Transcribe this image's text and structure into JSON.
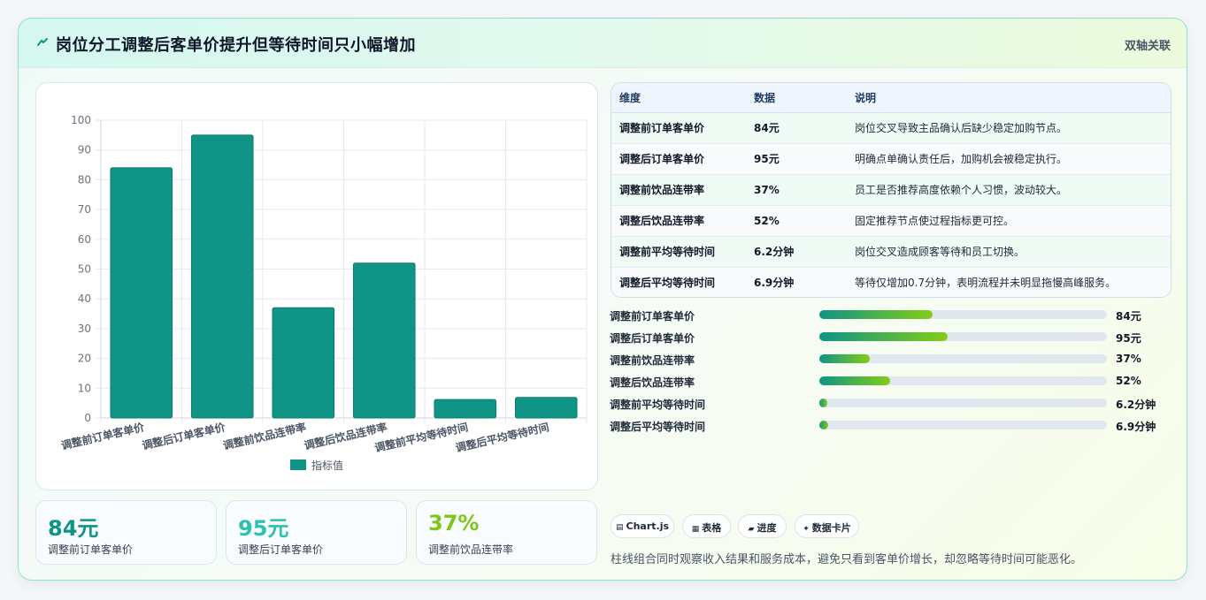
{
  "header": {
    "icon": "bolt-icon",
    "title": "岗位分工调整后客单价提升但等待时间只小幅增加",
    "tag": "双轴关联"
  },
  "colors": {
    "bar": "#0f9486",
    "kpi_1": "#0f9486",
    "kpi_2": "#2dc2b0",
    "kpi_3": "#7dc61a",
    "progress_start": "#0f9486",
    "progress_end": "#84cc16"
  },
  "chart_data": {
    "type": "bar",
    "categories": [
      "调整前订单客单价",
      "调整后订单客单价",
      "调整前饮品连带率",
      "调整后饮品连带率",
      "调整前平均等待时间",
      "调整后平均等待时间"
    ],
    "series": [
      {
        "name": "指标值",
        "values": [
          84,
          95,
          37,
          52,
          6.2,
          6.9
        ]
      }
    ],
    "ylim": [
      0,
      100
    ],
    "yticks": [
      0,
      10,
      20,
      30,
      40,
      50,
      60,
      70,
      80,
      90,
      100
    ],
    "grid": true,
    "legend": "bottom"
  },
  "kpis": [
    {
      "value": "84元",
      "label": "调整前订单客单价"
    },
    {
      "value": "95元",
      "label": "调整后订单客单价"
    },
    {
      "value": "37%",
      "label": "调整前饮品连带率"
    }
  ],
  "table": {
    "headers": [
      "维度",
      "数据",
      "说明"
    ],
    "rows": [
      {
        "dim": "调整前订单客单价",
        "data": "84元",
        "desc": "岗位交叉导致主品确认后缺少稳定加购节点。"
      },
      {
        "dim": "调整后订单客单价",
        "data": "95元",
        "desc": "明确点单确认责任后，加购机会被稳定执行。"
      },
      {
        "dim": "调整前饮品连带率",
        "data": "37%",
        "desc": "员工是否推荐高度依赖个人习惯，波动较大。"
      },
      {
        "dim": "调整后饮品连带率",
        "data": "52%",
        "desc": "固定推荐节点使过程指标更可控。"
      },
      {
        "dim": "调整前平均等待时间",
        "data": "6.2分钟",
        "desc": "岗位交叉造成顾客等待和员工切换。"
      },
      {
        "dim": "调整后平均等待时间",
        "data": "6.9分钟",
        "desc": "等待仅增加0.7分钟，表明流程并未明显拖慢高峰服务。"
      }
    ]
  },
  "progress": [
    {
      "label": "调整前订单客单价",
      "value": "84元",
      "fraction": 0.395
    },
    {
      "label": "调整后订单客单价",
      "value": "95元",
      "fraction": 0.447
    },
    {
      "label": "调整前饮品连带率",
      "value": "37%",
      "fraction": 0.174
    },
    {
      "label": "调整后饮品连带率",
      "value": "52%",
      "fraction": 0.245
    },
    {
      "label": "调整前平均等待时间",
      "value": "6.2分钟",
      "fraction": 0.029
    },
    {
      "label": "调整后平均等待时间",
      "value": "6.9分钟",
      "fraction": 0.032
    }
  ],
  "chips": [
    {
      "icon": "chart-icon",
      "glyph": "▤",
      "label": "Chart.js"
    },
    {
      "icon": "table-icon",
      "glyph": "▦",
      "label": "表格"
    },
    {
      "icon": "progress-icon",
      "glyph": "▰",
      "label": "进度"
    },
    {
      "icon": "sparkle-icon",
      "glyph": "✦",
      "label": "数据卡片"
    }
  ],
  "footnote": "柱线组合同时观察收入结果和服务成本，避免只看到客单价增长，却忽略等待时间可能恶化。"
}
